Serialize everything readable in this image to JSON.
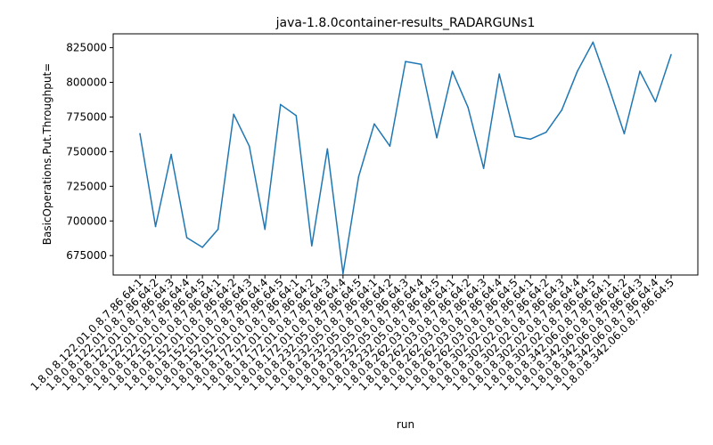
{
  "chart_data": {
    "type": "line",
    "title": "java-1.8.0container-results_RADARGUNs1",
    "xlabel": "run",
    "ylabel": "BasicOperations.Put.Throughput=",
    "ylim": [
      661000,
      835000
    ],
    "yticks": [
      675000,
      700000,
      725000,
      750000,
      775000,
      800000,
      825000
    ],
    "ytick_labels": [
      "675000",
      "700000",
      "725000",
      "750000",
      "775000",
      "800000",
      "825000"
    ],
    "grid": false,
    "legend": "none",
    "line_color": "#1f77b4",
    "categories": [
      "1.8.0.8.122.01.0.8.7.86.64:1",
      "1.8.0.8.122.01.0.8.7.86.64:2",
      "1.8.0.8.122.01.0.8.7.86.64:3",
      "1.8.0.8.122.01.0.8.7.86.64:4",
      "1.8.0.8.122.01.0.8.7.86.64:5",
      "1.8.0.8.152.01.0.8.7.86.64:1",
      "1.8.0.8.152.01.0.8.7.86.64:2",
      "1.8.0.8.152.01.0.8.7.86.64:3",
      "1.8.0.8.152.01.0.8.7.86.64:4",
      "1.8.0.8.152.01.0.8.7.86.64:5",
      "1.8.0.8.172.01.0.8.7.86.64:1",
      "1.8.0.8.172.01.0.8.7.86.64:2",
      "1.8.0.8.172.01.0.8.7.86.64:3",
      "1.8.0.8.172.01.0.8.7.86.64:4",
      "1.8.0.8.232.05.0.8.7.86.64:5",
      "1.8.0.8.232.05.0.8.7.86.64:1",
      "1.8.0.8.232.05.0.8.7.86.64:2",
      "1.8.0.8.232.05.0.8.7.86.64:3",
      "1.8.0.8.232.05.0.8.7.86.64:4",
      "1.8.0.8.232.05.0.8.7.86.64:5",
      "1.8.0.8.262.03.0.8.7.86.64:1",
      "1.8.0.8.262.03.0.8.7.86.64:2",
      "1.8.0.8.262.03.0.8.7.86.64:3",
      "1.8.0.8.262.03.0.8.7.86.64:4",
      "1.8.0.8.262.03.0.8.7.86.64:5",
      "1.8.0.8.302.02.0.8.7.86.64:1",
      "1.8.0.8.302.02.0.8.7.86.64:2",
      "1.8.0.8.302.02.0.8.7.86.64:3",
      "1.8.0.8.302.02.0.8.7.86.64:4",
      "1.8.0.8.302.02.0.8.7.86.64:5",
      "1.8.0.8.342.06.0.8.7.86.64:1",
      "1.8.0.8.342.06.0.8.7.86.64:2",
      "1.8.0.8.342.06.0.8.7.86.64:3",
      "1.8.0.8.342.06.0.8.7.86.64:4",
      "1.8.0.8.342.06.0.8.7.86.64:5"
    ],
    "values": [
      763000,
      696000,
      748000,
      688000,
      681000,
      694000,
      777000,
      754000,
      694000,
      784000,
      776000,
      682000,
      752000,
      662000,
      732000,
      770000,
      754000,
      815000,
      813000,
      760000,
      808000,
      782000,
      738000,
      806000,
      761000,
      759000,
      764000,
      780000,
      808000,
      829000,
      797000,
      763000,
      808000,
      786000,
      820000
    ]
  }
}
